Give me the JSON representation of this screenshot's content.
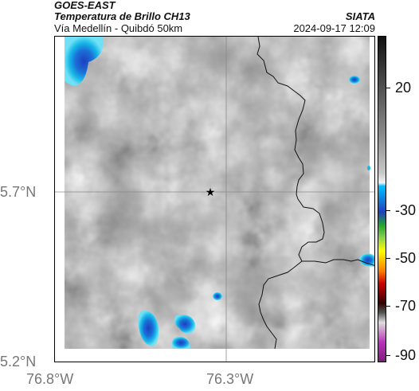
{
  "header": {
    "source": "GOES-EAST",
    "product": "Temperatura de Brillo CH13",
    "region": "Vía Medellín - Quibdó 50km",
    "brand": "SIATA",
    "datetime": "2024-09-17 12:09"
  },
  "map": {
    "lat_ticks": [
      "5.7°N",
      "5.2°N"
    ],
    "lon_ticks": [
      "76.8°W",
      "76.3°W"
    ],
    "marker": "star",
    "grid": true
  },
  "colorbar": {
    "ticks": [
      "20",
      "-30",
      "-50",
      "-70",
      "-90"
    ],
    "colors": {
      "cold_cyan": "#00bfff",
      "deep_blue": "#1f3fbf",
      "green": "#22a52f",
      "yellow": "#ffff00",
      "orange": "#ff7f00",
      "red": "#cc0000",
      "magenta": "#bb33bb"
    }
  }
}
